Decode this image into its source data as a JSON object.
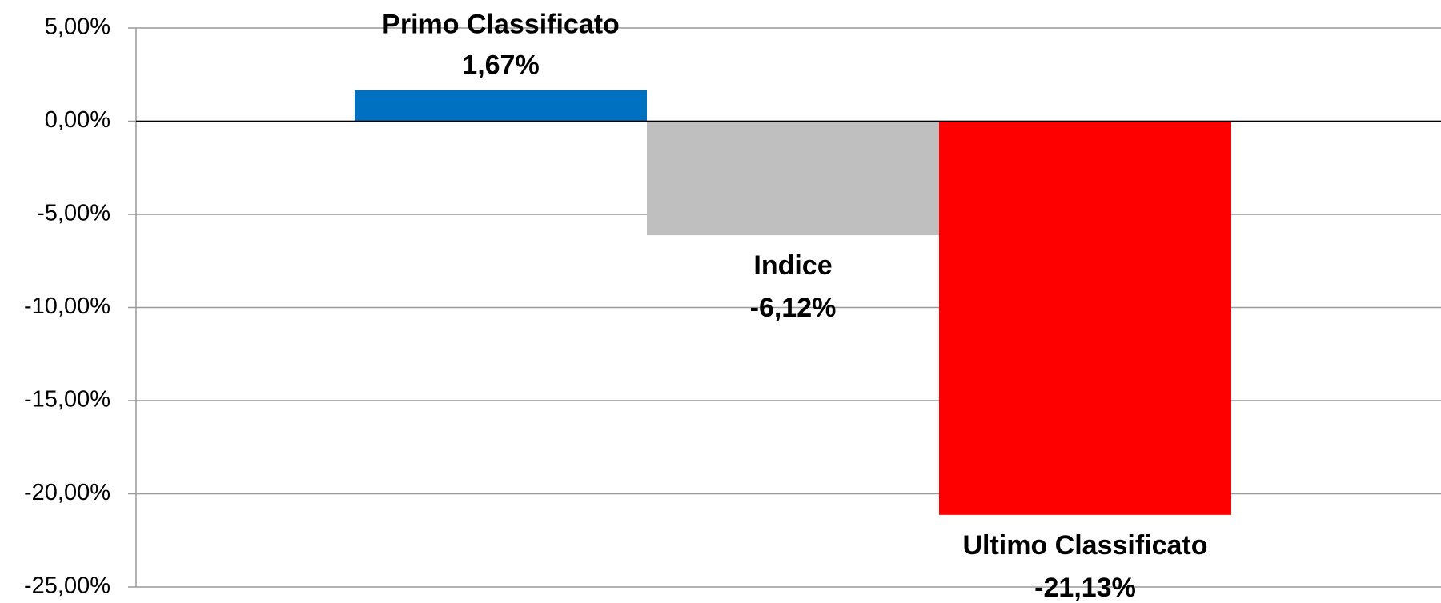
{
  "chart_data": {
    "type": "bar",
    "categories": [
      "Primo Classificato",
      "Indice",
      "Ultimo Classificato"
    ],
    "values": [
      1.67,
      -6.12,
      -21.13
    ],
    "value_labels": [
      "1,67%",
      "-6,12%",
      "-21,13%"
    ],
    "colors": [
      "#0070c0",
      "#bfbfbf",
      "#ff0000"
    ],
    "ylim": [
      -25,
      5
    ],
    "yticks": [
      {
        "value": -25,
        "label": "-25,00%"
      },
      {
        "value": -20,
        "label": "-20,00%"
      },
      {
        "value": -15,
        "label": "-15,00%"
      },
      {
        "value": -10,
        "label": "-10,00%"
      },
      {
        "value": -5,
        "label": "-5,00%"
      },
      {
        "value": 0,
        "label": "0,00%"
      },
      {
        "value": 5,
        "label": "5,00%"
      }
    ],
    "grid": true
  }
}
